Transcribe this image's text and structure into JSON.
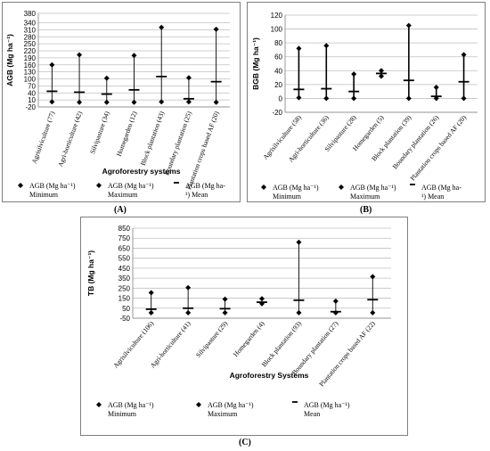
{
  "chart_data": [
    {
      "id": "A",
      "type": "scatter",
      "panel_label": "(A)",
      "xlabel": "Agroforestry systems",
      "ylabel": "AGB (Mg ha⁻¹)",
      "ylim": [
        -20,
        380
      ],
      "yticks": [
        -20,
        10,
        40,
        70,
        100,
        130,
        160,
        190,
        220,
        250,
        280,
        310,
        340,
        380
      ],
      "grid": true,
      "label_rotation": -70,
      "categories": [
        "Agrisilviculture (77)",
        "Agri-horticulture (42)",
        "Silvipasture (34)",
        "Homegarden (12)",
        "Block plantation (43)",
        "Boundary plantation (25)",
        "Plantation crops based AF (20)"
      ],
      "series": [
        {
          "name": "AGB (Mg ha-1) Minimum",
          "marker": "diamond",
          "values": [
            2,
            0,
            0,
            0,
            2,
            2,
            0
          ]
        },
        {
          "name": "AGB (Mg ha-1) Maximum",
          "marker": "diamond",
          "values": [
            160,
            203,
            103,
            200,
            320,
            105,
            312
          ]
        },
        {
          "name": "AGB (Mg ha-1) Mean",
          "marker": "dash",
          "values": [
            47,
            43,
            35,
            53,
            110,
            15,
            88
          ]
        }
      ],
      "legend_position": "bottom",
      "legend": [
        {
          "line1": "AGB (Mg ha⁻¹)",
          "line2": "Minimum"
        },
        {
          "line1": "AGB (Mg ha⁻¹)",
          "line2": "Maximum"
        },
        {
          "line1": "AGB (Mg ha-",
          "line2": "¹) Mean"
        }
      ]
    },
    {
      "id": "B",
      "type": "scatter",
      "panel_label": "(B)",
      "xlabel": "",
      "ylabel": "BGB (Mg ha⁻¹)",
      "ylim": [
        -20,
        120
      ],
      "yticks": [
        -20,
        0,
        20,
        40,
        60,
        80,
        100,
        120
      ],
      "grid": true,
      "label_rotation": -50,
      "categories": [
        "Agrisilviculture (58)",
        "Agri-horticulture (36)",
        "Silvipasture (28)",
        "Homegarden (5)",
        "Block plantation (39)",
        "Boundary plantation (26)",
        "Plantation crops based AF (20)"
      ],
      "series": [
        {
          "name": "AGB (Mg ha-1) Minimum",
          "marker": "diamond",
          "values": [
            1,
            0,
            0,
            32,
            0,
            0,
            0
          ]
        },
        {
          "name": "AGB (Mg ha-1) Maximum",
          "marker": "diamond",
          "values": [
            72,
            76,
            35,
            40,
            105,
            16,
            63
          ]
        },
        {
          "name": "AGB (Mg ha-1) Mean",
          "marker": "dash",
          "values": [
            13,
            14,
            10,
            36,
            26,
            3,
            24
          ]
        }
      ],
      "legend_position": "bottom",
      "legend": [
        {
          "line1": "AGB (Mg ha⁻¹)",
          "line2": "Minimum"
        },
        {
          "line1": "AGB (Mg ha⁻¹)",
          "line2": "Maximum"
        },
        {
          "line1": "AGB (Mg ha-",
          "line2": "¹)  Mean"
        }
      ]
    },
    {
      "id": "C",
      "type": "scatter",
      "panel_label": "(C)",
      "xlabel": "Agroforestry Systems",
      "ylabel": "TB (Mg ha⁻¹)",
      "ylim": [
        -50,
        850
      ],
      "yticks": [
        -50,
        50,
        150,
        250,
        350,
        450,
        550,
        650,
        750,
        850
      ],
      "grid": true,
      "label_rotation": -50,
      "categories": [
        "Agrisilviculture (106)",
        "Agri-horticulture (41)",
        "Silvipasture (29)",
        "Homegarden (4)",
        "Block plantation (93)",
        "Boundary plantation (27)",
        "Plantation crops based AF (22)"
      ],
      "series": [
        {
          "name": "AGB (Mg ha-1) Minimum",
          "marker": "diamond",
          "values": [
            5,
            5,
            5,
            95,
            5,
            5,
            5
          ]
        },
        {
          "name": "AGB (Mg ha-1) Maximum",
          "marker": "diamond",
          "values": [
            205,
            255,
            140,
            145,
            710,
            120,
            365
          ]
        },
        {
          "name": "AGB (Mg ha-1) Mean",
          "marker": "dash",
          "values": [
            40,
            50,
            45,
            110,
            130,
            15,
            135
          ]
        }
      ],
      "legend_position": "bottom",
      "legend": [
        {
          "line1": "AGB (Mg ha⁻¹)",
          "line2": "Minimum"
        },
        {
          "line1": "AGB (Mg ha⁻¹)",
          "line2": "Maximum"
        },
        {
          "line1": "AGB (Mg ha⁻¹)",
          "line2": "Mean"
        }
      ]
    }
  ]
}
